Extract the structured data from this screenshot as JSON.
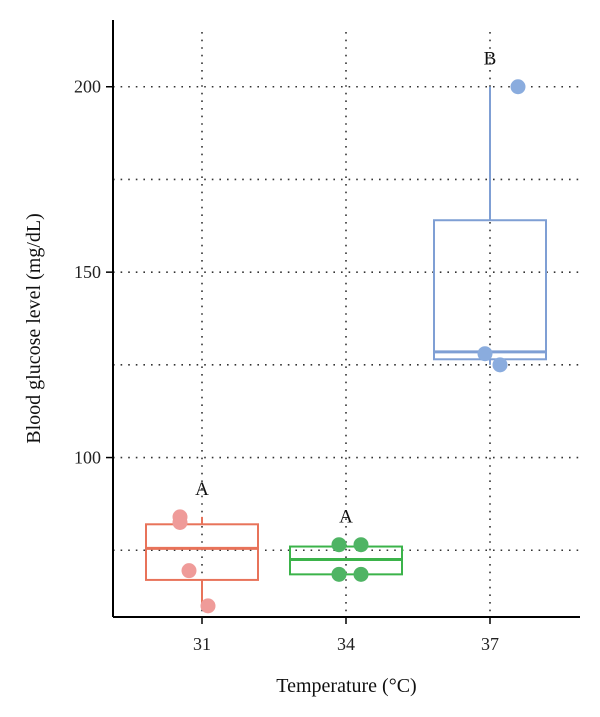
{
  "chart_data": {
    "type": "box",
    "xlabel": "Temperature (°C)",
    "ylabel": "Blood glucose level (mg/dL)",
    "categories": [
      "31",
      "34",
      "37"
    ],
    "ylim": [
      57,
      218
    ],
    "y_ticks": [
      100,
      150,
      200
    ],
    "y_minor_grid": [
      75,
      125,
      175
    ],
    "grid": true,
    "groups": [
      {
        "category": "31",
        "color": "#e8735a",
        "point_color": "#ef9b99",
        "letter": "A",
        "box": {
          "q1": 67,
          "median": 75.5,
          "q3": 82,
          "whisker_low": 60,
          "whisker_high": 84
        },
        "points": [
          84,
          82.5,
          69.5,
          60
        ]
      },
      {
        "category": "34",
        "color": "#3bb34a",
        "point_color": "#4fb464",
        "letter": "A",
        "box": {
          "q1": 68.5,
          "median": 72.5,
          "q3": 76,
          "whisker_low": 68.5,
          "whisker_high": 76.5
        },
        "points": [
          76.5,
          76.5,
          68.5,
          68.5
        ]
      },
      {
        "category": "37",
        "color": "#7f9fd4",
        "point_color": "#8aacde",
        "letter": "B",
        "box": {
          "q1": 126.5,
          "median": 128.5,
          "q3": 164,
          "whisker_low": 125,
          "whisker_high": 200
        },
        "points": [
          200,
          128,
          125
        ]
      }
    ]
  }
}
